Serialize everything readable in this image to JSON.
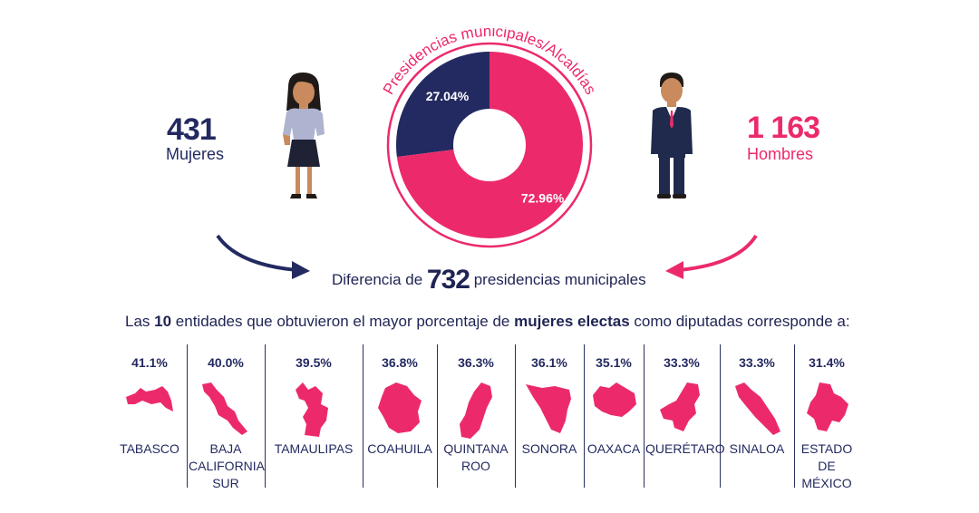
{
  "colors": {
    "navy": "#232a61",
    "pink": "#ec2a6b"
  },
  "icons": {
    "woman": "woman-figure-icon",
    "man": "man-figure-icon"
  },
  "women": {
    "count": "431",
    "label": "Mujeres"
  },
  "men": {
    "count": "1 163",
    "label": "Hombres"
  },
  "chart_data": {
    "type": "pie",
    "title": "Presidencias municipales/Alcaldías",
    "slices": [
      {
        "label": "27.04%",
        "value": 27.04
      },
      {
        "label": "72.96%",
        "value": 72.96
      }
    ]
  },
  "difference": {
    "prefix": "Diferencia de",
    "number": "732",
    "suffix": "presidencias municipales"
  },
  "sentence": {
    "p1": "Las ",
    "n": "10",
    "p2": " entidades que obtuvieron el mayor porcentaje de ",
    "bold": "mujeres electas",
    "p3": " como diputadas corresponde a:"
  },
  "states": [
    {
      "pct": "41.1%",
      "name": "TABASCO",
      "value": 41.1
    },
    {
      "pct": "40.0%",
      "name": "BAJA CALIFORNIA SUR",
      "value": 40.0
    },
    {
      "pct": "39.5%",
      "name": "TAMAULIPAS",
      "value": 39.5
    },
    {
      "pct": "36.8%",
      "name": "COAHUILA",
      "value": 36.8
    },
    {
      "pct": "36.3%",
      "name": "QUINTANA ROO",
      "value": 36.3
    },
    {
      "pct": "36.1%",
      "name": "SONORA",
      "value": 36.1
    },
    {
      "pct": "35.1%",
      "name": "OAXACA",
      "value": 35.1
    },
    {
      "pct": "33.3%",
      "name": "QUERÉTARO",
      "value": 33.3
    },
    {
      "pct": "33.3%",
      "name": "SINALOA",
      "value": 33.3
    },
    {
      "pct": "31.4%",
      "name": "ESTADO DE MÉXICO",
      "value": 31.4
    }
  ]
}
